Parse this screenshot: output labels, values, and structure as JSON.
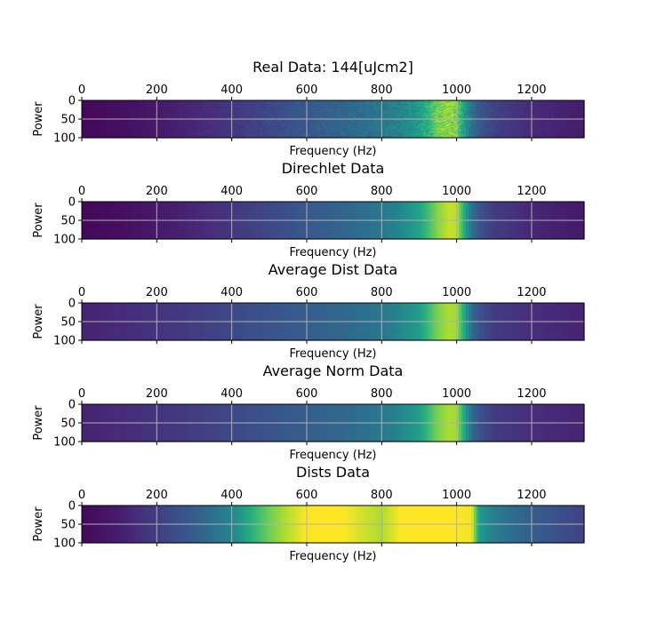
{
  "chart_data": [
    {
      "type": "heatmap",
      "title": "Real Data: 144[uJcm2]",
      "xlabel": "Frequency (Hz)",
      "ylabel": "Power",
      "xlim": [
        0,
        1340
      ],
      "ylim": [
        100,
        0
      ],
      "xticks": [
        0,
        200,
        400,
        600,
        800,
        1000,
        1200
      ],
      "yticks": [
        0,
        50,
        100
      ],
      "grid": true,
      "colormap": "viridis",
      "profile": {
        "x": [
          0,
          100,
          200,
          300,
          400,
          500,
          600,
          700,
          800,
          850,
          900,
          930,
          950,
          980,
          1000,
          1020,
          1040,
          1060,
          1100,
          1200,
          1340
        ],
        "values": [
          0.02,
          0.04,
          0.07,
          0.11,
          0.16,
          0.22,
          0.28,
          0.33,
          0.4,
          0.45,
          0.55,
          0.68,
          0.78,
          0.86,
          0.78,
          0.55,
          0.38,
          0.28,
          0.2,
          0.12,
          0.08
        ]
      },
      "row_noise": 0.22
    },
    {
      "type": "heatmap",
      "title": "Direchlet Data",
      "xlabel": "Frequency (Hz)",
      "ylabel": "Power",
      "xlim": [
        0,
        1340
      ],
      "ylim": [
        100,
        0
      ],
      "xticks": [
        0,
        200,
        400,
        600,
        800,
        1000,
        1200
      ],
      "yticks": [
        0,
        50,
        100
      ],
      "grid": true,
      "colormap": "viridis",
      "profile": {
        "x": [
          0,
          100,
          200,
          300,
          400,
          500,
          600,
          700,
          800,
          850,
          900,
          930,
          950,
          980,
          1000,
          1020,
          1040,
          1060,
          1100,
          1200,
          1340
        ],
        "values": [
          0.02,
          0.04,
          0.07,
          0.11,
          0.16,
          0.22,
          0.28,
          0.33,
          0.4,
          0.46,
          0.58,
          0.72,
          0.82,
          0.92,
          0.9,
          0.62,
          0.38,
          0.26,
          0.18,
          0.11,
          0.07
        ]
      },
      "row_noise": 0.0
    },
    {
      "type": "heatmap",
      "title": "Average Dist Data",
      "xlabel": "Frequency (Hz)",
      "ylabel": "Power",
      "xlim": [
        0,
        1340
      ],
      "ylim": [
        100,
        0
      ],
      "xticks": [
        0,
        200,
        400,
        600,
        800,
        1000,
        1200
      ],
      "yticks": [
        0,
        50,
        100
      ],
      "grid": true,
      "colormap": "viridis",
      "profile": {
        "x": [
          0,
          100,
          200,
          300,
          400,
          500,
          600,
          700,
          800,
          850,
          900,
          930,
          950,
          980,
          1000,
          1020,
          1040,
          1060,
          1100,
          1200,
          1340
        ],
        "values": [
          0.1,
          0.12,
          0.15,
          0.18,
          0.22,
          0.26,
          0.3,
          0.34,
          0.4,
          0.46,
          0.56,
          0.7,
          0.8,
          0.88,
          0.86,
          0.6,
          0.36,
          0.25,
          0.18,
          0.13,
          0.1
        ]
      },
      "row_noise": 0.0
    },
    {
      "type": "heatmap",
      "title": "Average Norm Data",
      "xlabel": "Frequency (Hz)",
      "ylabel": "Power",
      "xlim": [
        0,
        1340
      ],
      "ylim": [
        100,
        0
      ],
      "xticks": [
        0,
        200,
        400,
        600,
        800,
        1000,
        1200
      ],
      "yticks": [
        0,
        50,
        100
      ],
      "grid": true,
      "colormap": "viridis",
      "profile": {
        "x": [
          0,
          100,
          200,
          300,
          400,
          500,
          600,
          700,
          800,
          850,
          900,
          930,
          950,
          980,
          1000,
          1020,
          1040,
          1060,
          1100,
          1200,
          1340
        ],
        "values": [
          0.1,
          0.12,
          0.15,
          0.18,
          0.22,
          0.26,
          0.3,
          0.34,
          0.4,
          0.46,
          0.56,
          0.7,
          0.8,
          0.88,
          0.86,
          0.6,
          0.36,
          0.25,
          0.18,
          0.13,
          0.1
        ]
      },
      "row_noise": 0.0
    },
    {
      "type": "heatmap",
      "title": "Dists Data",
      "xlabel": "Frequency (Hz)",
      "ylabel": "Power",
      "xlim": [
        0,
        1340
      ],
      "ylim": [
        100,
        0
      ],
      "xticks": [
        0,
        200,
        400,
        600,
        800,
        1000,
        1200
      ],
      "yticks": [
        0,
        50,
        100
      ],
      "grid": true,
      "colormap": "viridis",
      "profile": {
        "x": [
          0,
          100,
          200,
          300,
          400,
          450,
          500,
          550,
          600,
          700,
          750,
          800,
          850,
          900,
          1000,
          1040,
          1060,
          1100,
          1200,
          1340
        ],
        "values": [
          0.02,
          0.08,
          0.18,
          0.3,
          0.45,
          0.62,
          0.78,
          0.9,
          1.0,
          1.0,
          0.93,
          0.88,
          1.0,
          1.0,
          1.0,
          0.98,
          0.55,
          0.42,
          0.3,
          0.2
        ]
      },
      "row_noise": 0.0
    }
  ]
}
